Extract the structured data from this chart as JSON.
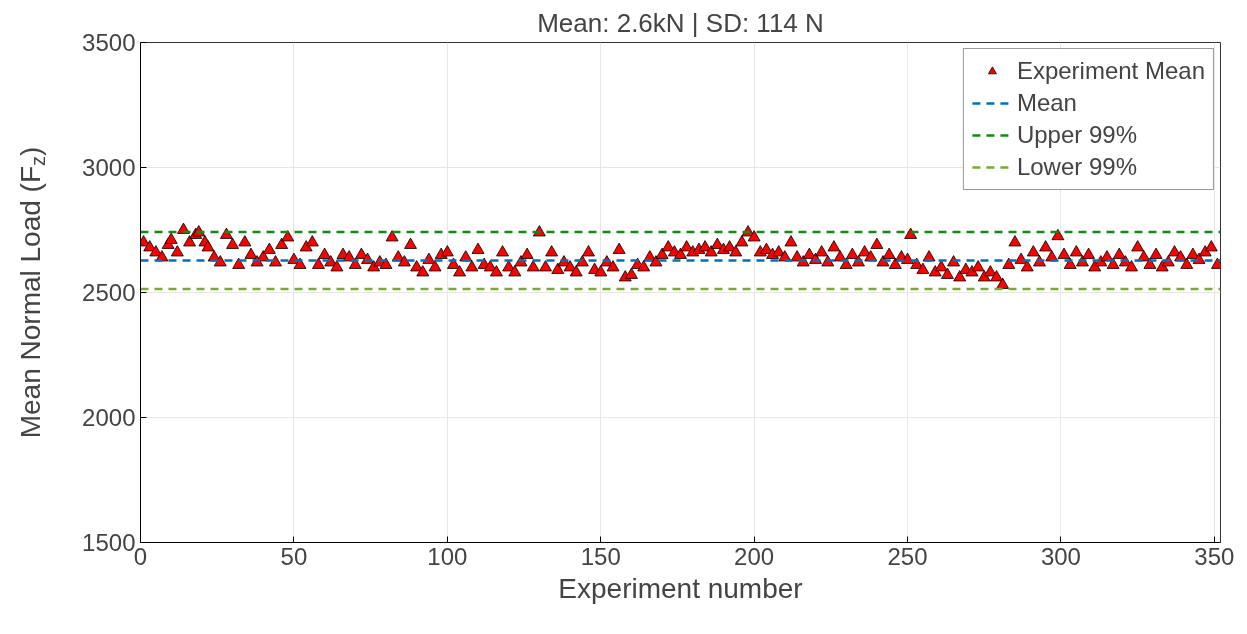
{
  "chart_data": {
    "type": "scatter",
    "title": "Mean: 2.6kN | SD: 114 N",
    "xlabel": "Experiment number",
    "ylabel": "Mean Normal Load (F$_{z}$)",
    "xlim": [
      0,
      352
    ],
    "ylim": [
      1500,
      3500
    ],
    "xticks": [
      0,
      50,
      100,
      150,
      200,
      250,
      300,
      350
    ],
    "yticks": [
      1500,
      2000,
      2500,
      3000,
      3500
    ],
    "grid": true,
    "legend": "top right",
    "marker": "triangle",
    "series": [
      {
        "name": "Experiment Mean",
        "color": "#ff0000",
        "x": [
          1,
          3,
          5,
          7,
          9,
          10,
          12,
          14,
          16,
          18,
          19,
          21,
          22,
          24,
          26,
          28,
          30,
          32,
          34,
          36,
          38,
          40,
          42,
          44,
          46,
          48,
          50,
          52,
          54,
          56,
          58,
          60,
          62,
          64,
          66,
          68,
          70,
          72,
          74,
          76,
          78,
          80,
          82,
          84,
          86,
          88,
          90,
          92,
          94,
          96,
          98,
          100,
          102,
          104,
          106,
          108,
          110,
          112,
          114,
          116,
          118,
          120,
          122,
          124,
          126,
          128,
          130,
          132,
          134,
          136,
          138,
          140,
          142,
          144,
          146,
          148,
          150,
          152,
          154,
          156,
          158,
          160,
          162,
          164,
          166,
          168,
          170,
          172,
          174,
          176,
          178,
          180,
          182,
          184,
          186,
          188,
          190,
          192,
          194,
          196,
          198,
          200,
          202,
          204,
          206,
          208,
          210,
          212,
          214,
          216,
          218,
          220,
          222,
          224,
          226,
          228,
          230,
          232,
          234,
          236,
          238,
          240,
          242,
          244,
          246,
          248,
          250,
          251,
          253,
          255,
          257,
          259,
          261,
          263,
          265,
          267,
          269,
          271,
          273,
          275,
          277,
          279,
          281,
          283,
          285,
          287,
          289,
          291,
          293,
          295,
          297,
          299,
          301,
          303,
          305,
          307,
          309,
          311,
          313,
          315,
          317,
          319,
          321,
          323,
          325,
          327,
          329,
          331,
          333,
          335,
          337,
          339,
          341,
          343,
          345,
          347,
          349,
          351
        ],
        "values": [
          2700,
          2680,
          2660,
          2640,
          2690,
          2710,
          2660,
          2750,
          2700,
          2730,
          2740,
          2700,
          2680,
          2640,
          2620,
          2730,
          2690,
          2610,
          2700,
          2650,
          2620,
          2640,
          2670,
          2620,
          2690,
          2720,
          2630,
          2610,
          2680,
          2700,
          2610,
          2650,
          2620,
          2600,
          2650,
          2640,
          2610,
          2650,
          2630,
          2600,
          2620,
          2610,
          2720,
          2640,
          2620,
          2690,
          2600,
          2580,
          2630,
          2600,
          2650,
          2660,
          2610,
          2580,
          2640,
          2600,
          2670,
          2610,
          2600,
          2580,
          2660,
          2600,
          2580,
          2620,
          2650,
          2600,
          2740,
          2600,
          2660,
          2590,
          2620,
          2600,
          2580,
          2620,
          2660,
          2590,
          2580,
          2620,
          2600,
          2670,
          2560,
          2570,
          2610,
          2600,
          2640,
          2620,
          2650,
          2680,
          2660,
          2650,
          2680,
          2660,
          2670,
          2680,
          2660,
          2690,
          2670,
          2680,
          2660,
          2700,
          2740,
          2720,
          2660,
          2670,
          2650,
          2660,
          2640,
          2700,
          2640,
          2620,
          2650,
          2630,
          2660,
          2620,
          2680,
          2640,
          2610,
          2650,
          2620,
          2660,
          2640,
          2690,
          2620,
          2650,
          2610,
          2640,
          2630,
          2730,
          2610,
          2590,
          2640,
          2580,
          2600,
          2570,
          2620,
          2560,
          2590,
          2580,
          2600,
          2560,
          2580,
          2560,
          2530,
          2610,
          2700,
          2630,
          2600,
          2660,
          2620,
          2680,
          2640,
          2725,
          2650,
          2610,
          2660,
          2620,
          2650,
          2600,
          2620,
          2640,
          2610,
          2650,
          2620,
          2600,
          2680,
          2640,
          2610,
          2650,
          2600,
          2620,
          2660,
          2640,
          2610,
          2650,
          2630,
          2660,
          2680,
          2610
        ]
      }
    ],
    "ref_lines": [
      {
        "axis": "y",
        "value": 2628,
        "label": "Mean",
        "color": "#0072bd",
        "line_style": "dashed"
      },
      {
        "axis": "y",
        "value": 2742,
        "label": "Upper 99%",
        "color": "#138a13",
        "line_style": "dashed"
      },
      {
        "axis": "y",
        "value": 2514,
        "label": "Lower 99%",
        "color": "#77ac30",
        "line_style": "dashed"
      }
    ]
  }
}
